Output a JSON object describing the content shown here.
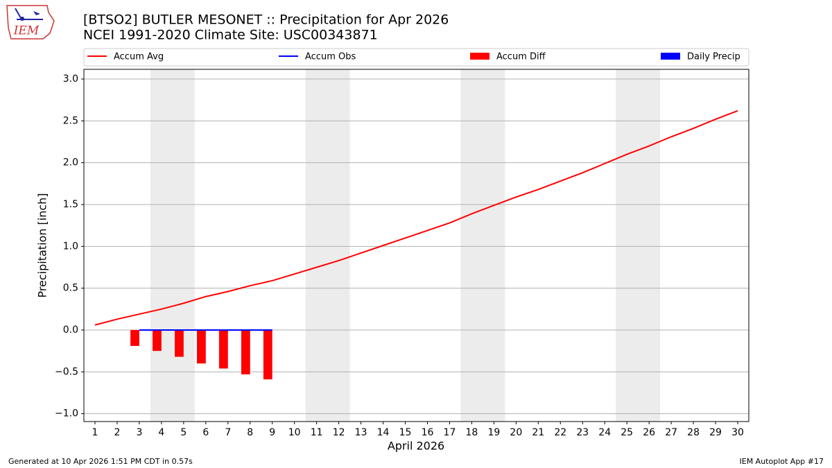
{
  "chart_data": {
    "type": "bar_line",
    "title": "[BTSO2] BUTLER MESONET :: Precipitation for Apr 2026",
    "subtitle": "NCEI 1991-2020 Climate Site: USC00343871",
    "x_label": "April 2026",
    "y_label": "Precipitation [inch]",
    "x": [
      1,
      2,
      3,
      4,
      5,
      6,
      7,
      8,
      9,
      10,
      11,
      12,
      13,
      14,
      15,
      16,
      17,
      18,
      19,
      20,
      21,
      22,
      23,
      24,
      25,
      26,
      27,
      28,
      29,
      30
    ],
    "series": [
      {
        "name": "Accum Avg",
        "kind": "line",
        "color": "red",
        "values": [
          0.06,
          0.13,
          0.19,
          0.25,
          0.32,
          0.4,
          0.46,
          0.53,
          0.59,
          0.67,
          0.75,
          0.83,
          0.92,
          1.01,
          1.1,
          1.19,
          1.28,
          1.39,
          1.49,
          1.59,
          1.68,
          1.78,
          1.88,
          1.99,
          2.1,
          2.2,
          2.31,
          2.41,
          2.52,
          2.62
        ]
      },
      {
        "name": "Accum Obs",
        "kind": "line",
        "color": "blue",
        "values": [
          null,
          null,
          0,
          0,
          0,
          0,
          0,
          0,
          0,
          null,
          null,
          null,
          null,
          null,
          null,
          null,
          null,
          null,
          null,
          null,
          null,
          null,
          null,
          null,
          null,
          null,
          null,
          null,
          null,
          null
        ]
      },
      {
        "name": "Accum Diff",
        "kind": "bar",
        "color": "red",
        "values": [
          null,
          null,
          -0.19,
          -0.25,
          -0.32,
          -0.4,
          -0.46,
          -0.53,
          -0.59,
          null,
          null,
          null,
          null,
          null,
          null,
          null,
          null,
          null,
          null,
          null,
          null,
          null,
          null,
          null,
          null,
          null,
          null,
          null,
          null,
          null
        ]
      },
      {
        "name": "Daily Precip",
        "kind": "bar",
        "color": "blue",
        "values": [
          null,
          null,
          0,
          0,
          0,
          0,
          0,
          0,
          0,
          null,
          null,
          null,
          null,
          null,
          null,
          null,
          null,
          null,
          null,
          null,
          null,
          null,
          null,
          null,
          null,
          null,
          null,
          null,
          null,
          null
        ]
      }
    ],
    "shaded_spans": [
      [
        3.5,
        5.5
      ],
      [
        10.5,
        12.5
      ],
      [
        17.5,
        19.5
      ],
      [
        24.5,
        26.5
      ]
    ],
    "xlim": [
      0.5,
      30.5
    ],
    "ylim": [
      -1.094,
      3.116
    ],
    "xticks": [
      1,
      2,
      3,
      4,
      5,
      6,
      7,
      8,
      9,
      10,
      11,
      12,
      13,
      14,
      15,
      16,
      17,
      18,
      19,
      20,
      21,
      22,
      23,
      24,
      25,
      26,
      27,
      28,
      29,
      30
    ],
    "yticks": [
      {
        "value": -1,
        "label": "−1.0"
      },
      {
        "value": -0.5,
        "label": "−0.5"
      },
      {
        "value": 0,
        "label": "0.0"
      },
      0.5,
      {
        "value": 1,
        "label": "1.0"
      },
      1.5,
      {
        "value": 2,
        "label": "2.0"
      },
      2.5,
      {
        "value": 3,
        "label": "3.0"
      }
    ],
    "grid": true,
    "legend": "top"
  },
  "logo": {
    "text": "IEM"
  },
  "footer": {
    "left": "Generated at 10 Apr 2026 1:51 PM CDT in 0.57s",
    "right": "IEM Autoplot App #17"
  }
}
